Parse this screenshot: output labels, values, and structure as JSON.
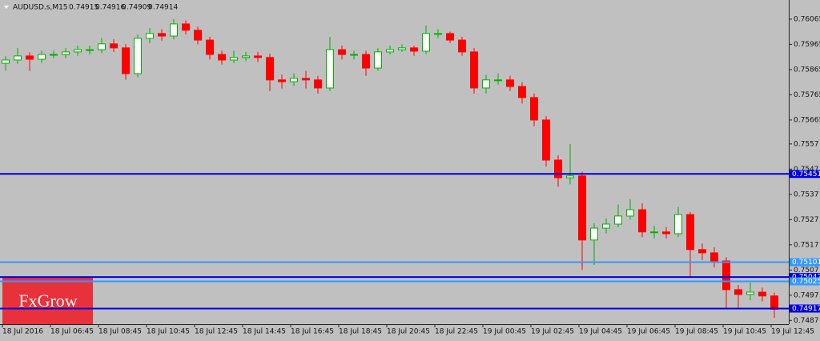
{
  "chart_data": {
    "type": "candlestick",
    "title": "AUDUSD.s,M15",
    "ohlc": [
      0.74915,
      0.74916,
      0.74909,
      0.74914
    ],
    "logo": "FxGrow",
    "x_labels": [
      "18 Jul 2016",
      "18 Jul 06:45",
      "18 Jul 08:45",
      "18 Jul 10:45",
      "18 Jul 12:45",
      "18 Jul 14:45",
      "18 Jul 16:45",
      "18 Jul 18:45",
      "18 Jul 20:45",
      "18 Jul 22:45",
      "19 Jul 00:45",
      "19 Jul 02:45",
      "19 Jul 04:45",
      "19 Jul 06:45",
      "19 Jul 08:45",
      "19 Jul 10:45",
      "19 Jul 12:45"
    ],
    "ylim": [
      0.74855,
      0.76141
    ],
    "yticks": [
      0.76065,
      0.75965,
      0.75865,
      0.75765,
      0.75665,
      0.7557,
      0.7547,
      0.7537,
      0.7527,
      0.7517,
      0.7507,
      0.7497,
      0.7487
    ],
    "up_color": "#ffffff",
    "up_border": "#00b000",
    "down_color": "#ff0000",
    "levels": [
      {
        "value": 0.75451,
        "color": "#0000e0"
      },
      {
        "value": 0.75101,
        "color": "#3399ff"
      },
      {
        "value": 0.75042,
        "color": "#0000e0"
      },
      {
        "value": 0.75025,
        "color": "#3399ff"
      },
      {
        "value": 0.74917,
        "color": "#0000e0"
      }
    ],
    "candles": [
      [
        0.7589,
        0.75918,
        0.7586,
        0.75903
      ],
      [
        0.75903,
        0.7595,
        0.75888,
        0.75919
      ],
      [
        0.75919,
        0.75934,
        0.7586,
        0.75906
      ],
      [
        0.75906,
        0.7594,
        0.75891,
        0.75925
      ],
      [
        0.75925,
        0.7594,
        0.7591,
        0.75925
      ],
      [
        0.75925,
        0.7595,
        0.7591,
        0.75935
      ],
      [
        0.75935,
        0.7596,
        0.7592,
        0.75944
      ],
      [
        0.75944,
        0.7596,
        0.75925,
        0.75944
      ],
      [
        0.75944,
        0.7599,
        0.7593,
        0.75967
      ],
      [
        0.75967,
        0.75985,
        0.75935,
        0.75951
      ],
      [
        0.75951,
        0.75966,
        0.75825,
        0.75849
      ],
      [
        0.75849,
        0.76005,
        0.75834,
        0.75989
      ],
      [
        0.75989,
        0.7603,
        0.7597,
        0.76008
      ],
      [
        0.76008,
        0.76025,
        0.7598,
        0.75998
      ],
      [
        0.75998,
        0.76065,
        0.75985,
        0.76046
      ],
      [
        0.76046,
        0.7606,
        0.76005,
        0.76021
      ],
      [
        0.76021,
        0.76035,
        0.75965,
        0.75982
      ],
      [
        0.75982,
        0.75995,
        0.75905,
        0.75925
      ],
      [
        0.75925,
        0.7594,
        0.75885,
        0.75903
      ],
      [
        0.75903,
        0.7594,
        0.7589,
        0.75913
      ],
      [
        0.75913,
        0.75935,
        0.75898,
        0.75919
      ],
      [
        0.75919,
        0.75935,
        0.75895,
        0.75913
      ],
      [
        0.75913,
        0.75928,
        0.7578,
        0.75824
      ],
      [
        0.75824,
        0.75845,
        0.7579,
        0.75817
      ],
      [
        0.75817,
        0.7585,
        0.758,
        0.7583
      ],
      [
        0.7583,
        0.7586,
        0.7579,
        0.75824
      ],
      [
        0.75824,
        0.7584,
        0.7577,
        0.75792
      ],
      [
        0.75792,
        0.75995,
        0.7578,
        0.75944
      ],
      [
        0.75944,
        0.7596,
        0.75905,
        0.75925
      ],
      [
        0.75925,
        0.7594,
        0.75905,
        0.75925
      ],
      [
        0.75925,
        0.7594,
        0.7584,
        0.75871
      ],
      [
        0.75871,
        0.7595,
        0.7586,
        0.75935
      ],
      [
        0.75935,
        0.7596,
        0.75925,
        0.75944
      ],
      [
        0.75944,
        0.75965,
        0.75935,
        0.75951
      ],
      [
        0.75951,
        0.7596,
        0.7592,
        0.75938
      ],
      [
        0.75938,
        0.7604,
        0.75925,
        0.76008
      ],
      [
        0.76008,
        0.76025,
        0.7599,
        0.76008
      ],
      [
        0.76008,
        0.76015,
        0.7597,
        0.75982
      ],
      [
        0.75982,
        0.75995,
        0.7592,
        0.75935
      ],
      [
        0.75935,
        0.7595,
        0.7577,
        0.75792
      ],
      [
        0.75792,
        0.75845,
        0.7577,
        0.75824
      ],
      [
        0.75824,
        0.7585,
        0.75805,
        0.75824
      ],
      [
        0.75824,
        0.7584,
        0.7578,
        0.75798
      ],
      [
        0.75798,
        0.75815,
        0.7573,
        0.75754
      ],
      [
        0.75754,
        0.7577,
        0.7564,
        0.75665
      ],
      [
        0.75665,
        0.7568,
        0.7548,
        0.75506
      ],
      [
        0.75506,
        0.75525,
        0.754,
        0.75436
      ],
      [
        0.75436,
        0.7557,
        0.7541,
        0.75443
      ],
      [
        0.75443,
        0.7546,
        0.7507,
        0.75189
      ],
      [
        0.75189,
        0.75255,
        0.7509,
        0.75236
      ],
      [
        0.75236,
        0.75275,
        0.75215,
        0.75252
      ],
      [
        0.75252,
        0.7533,
        0.7524,
        0.75284
      ],
      [
        0.75284,
        0.7535,
        0.7527,
        0.75309
      ],
      [
        0.75309,
        0.75335,
        0.752,
        0.75221
      ],
      [
        0.75221,
        0.75245,
        0.75195,
        0.75221
      ],
      [
        0.75221,
        0.7524,
        0.75195,
        0.75214
      ],
      [
        0.75214,
        0.7532,
        0.752,
        0.7529
      ],
      [
        0.7529,
        0.753,
        0.7504,
        0.75151
      ],
      [
        0.75151,
        0.75175,
        0.7511,
        0.75138
      ],
      [
        0.75138,
        0.7516,
        0.7508,
        0.75106
      ],
      [
        0.75106,
        0.7512,
        0.74915,
        0.74992
      ],
      [
        0.74992,
        0.7501,
        0.7492,
        0.74973
      ],
      [
        0.74973,
        0.7502,
        0.7495,
        0.74982
      ],
      [
        0.74982,
        0.75,
        0.74945,
        0.74967
      ],
      [
        0.74967,
        0.7498,
        0.7488,
        0.74914
      ]
    ]
  }
}
